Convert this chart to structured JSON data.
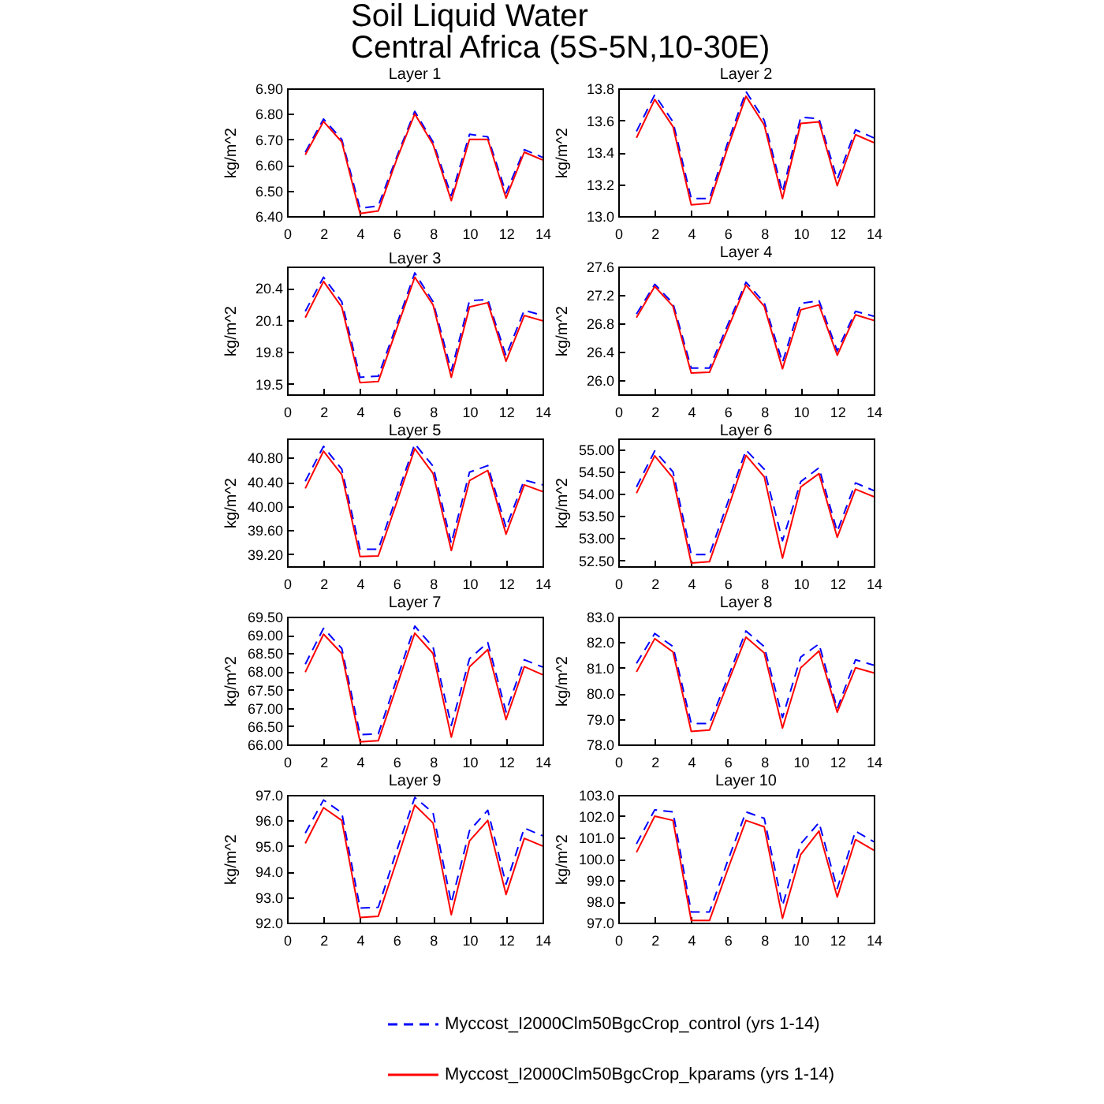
{
  "chart_data": [
    {
      "type": "other",
      "title": "Soil Liquid Water",
      "subtitle": "Central Africa (5S-5N,10-30E)"
    },
    {
      "type": "line",
      "title": "Layer 1",
      "ylabel": "kg/m^2",
      "x": [
        1,
        2,
        3,
        4,
        5,
        6,
        7,
        8,
        9,
        10,
        11,
        12,
        13,
        14
      ],
      "xlim": [
        0,
        14
      ],
      "xticks": [
        0,
        2,
        4,
        6,
        8,
        10,
        12,
        14
      ],
      "ylim": [
        6.4,
        6.9
      ],
      "yticks": [
        {
          "value": 6.4,
          "label": "6.40"
        },
        {
          "value": 6.5,
          "label": "6.50"
        },
        {
          "value": 6.6,
          "label": "6.60"
        },
        {
          "value": 6.7,
          "label": "6.70"
        },
        {
          "value": 6.8,
          "label": "6.80"
        },
        {
          "value": 6.9,
          "label": "6.90"
        }
      ],
      "series": [
        {
          "color": "#0000ff",
          "line_style": "dashed",
          "values": [
            6.65,
            6.78,
            6.7,
            6.43,
            6.44,
            6.63,
            6.81,
            6.69,
            6.48,
            6.72,
            6.71,
            6.49,
            6.66,
            6.63
          ]
        },
        {
          "color": "#ff0000",
          "line_style": "solid",
          "values": [
            6.64,
            6.77,
            6.69,
            6.41,
            6.42,
            6.62,
            6.8,
            6.68,
            6.46,
            6.7,
            6.7,
            6.47,
            6.65,
            6.62
          ]
        }
      ]
    },
    {
      "type": "line",
      "title": "Layer 2",
      "ylabel": "kg/m^2",
      "x": [
        1,
        2,
        3,
        4,
        5,
        6,
        7,
        8,
        9,
        10,
        11,
        12,
        13,
        14
      ],
      "xlim": [
        0,
        14
      ],
      "xticks": [
        0,
        2,
        4,
        6,
        8,
        10,
        12,
        14
      ],
      "ylim": [
        13.0,
        13.8
      ],
      "yticks": [
        {
          "value": 13,
          "label": "13.0"
        },
        13.2,
        13.4,
        13.6,
        13.8
      ],
      "series": [
        {
          "color": "#0000ff",
          "line_style": "dashed",
          "values": [
            13.53,
            13.76,
            13.59,
            13.11,
            13.11,
            13.46,
            13.78,
            13.6,
            13.15,
            13.62,
            13.61,
            13.23,
            13.54,
            13.49
          ]
        },
        {
          "color": "#ff0000",
          "line_style": "solid",
          "values": [
            13.49,
            13.73,
            13.56,
            13.07,
            13.08,
            13.43,
            13.75,
            13.57,
            13.11,
            13.58,
            13.59,
            13.19,
            13.51,
            13.46
          ]
        }
      ]
    },
    {
      "type": "line",
      "title": "Layer 3",
      "ylabel": "kg/m^2",
      "x": [
        1,
        2,
        3,
        4,
        5,
        6,
        7,
        8,
        9,
        10,
        11,
        12,
        13,
        14
      ],
      "xlim": [
        0,
        14
      ],
      "xticks": [
        0,
        2,
        4,
        6,
        8,
        10,
        12,
        14
      ],
      "ylim": [
        19.4,
        20.6
      ],
      "yticks": [
        19.5,
        19.8,
        20.1,
        20.4
      ],
      "series": [
        {
          "color": "#0000ff",
          "line_style": "dashed",
          "values": [
            20.18,
            20.5,
            20.27,
            19.56,
            19.57,
            20.05,
            20.54,
            20.27,
            19.62,
            20.28,
            20.29,
            19.76,
            20.19,
            20.14
          ]
        },
        {
          "color": "#ff0000",
          "line_style": "solid",
          "values": [
            20.12,
            20.46,
            20.22,
            19.51,
            19.52,
            20.01,
            20.5,
            20.24,
            19.56,
            20.22,
            20.26,
            19.71,
            20.14,
            20.09
          ]
        }
      ]
    },
    {
      "type": "line",
      "title": "Layer 4",
      "ylabel": "kg/m^2",
      "x": [
        1,
        2,
        3,
        4,
        5,
        6,
        7,
        8,
        9,
        10,
        11,
        12,
        13,
        14
      ],
      "xlim": [
        0,
        14
      ],
      "xticks": [
        0,
        2,
        4,
        6,
        8,
        10,
        12,
        14
      ],
      "ylim": [
        25.8,
        27.6
      ],
      "yticks": [
        {
          "value": 26,
          "label": "26.0"
        },
        26.4,
        26.8,
        27.2,
        27.6
      ],
      "series": [
        {
          "color": "#0000ff",
          "line_style": "dashed",
          "values": [
            26.93,
            27.35,
            27.08,
            26.17,
            26.17,
            26.78,
            27.38,
            27.09,
            26.25,
            27.08,
            27.12,
            26.41,
            26.97,
            26.9
          ]
        },
        {
          "color": "#ff0000",
          "line_style": "solid",
          "values": [
            26.88,
            27.32,
            27.04,
            26.1,
            26.11,
            26.72,
            27.34,
            27.04,
            26.16,
            26.99,
            27.06,
            26.35,
            26.92,
            26.84
          ]
        }
      ]
    },
    {
      "type": "line",
      "title": "Layer 5",
      "ylabel": "kg/m^2",
      "x": [
        1,
        2,
        3,
        4,
        5,
        6,
        7,
        8,
        9,
        10,
        11,
        12,
        13,
        14
      ],
      "xlim": [
        0,
        14
      ],
      "xticks": [
        0,
        2,
        4,
        6,
        8,
        10,
        12,
        14
      ],
      "ylim": [
        39.0,
        41.12
      ],
      "yticks": [
        {
          "value": 39.2,
          "label": "39.20"
        },
        {
          "value": 39.6,
          "label": "39.60"
        },
        {
          "value": 40,
          "label": "40.00"
        },
        {
          "value": 40.4,
          "label": "40.40"
        },
        {
          "value": 40.8,
          "label": "40.80"
        }
      ],
      "series": [
        {
          "color": "#0000ff",
          "line_style": "dashed",
          "values": [
            40.41,
            40.99,
            40.61,
            39.28,
            39.28,
            40.15,
            41.03,
            40.66,
            39.38,
            40.56,
            40.67,
            39.64,
            40.43,
            40.35
          ]
        },
        {
          "color": "#ff0000",
          "line_style": "solid",
          "values": [
            40.29,
            40.91,
            40.52,
            39.16,
            39.17,
            40.05,
            40.95,
            40.54,
            39.26,
            40.42,
            40.59,
            39.53,
            40.35,
            40.24
          ]
        }
      ]
    },
    {
      "type": "line",
      "title": "Layer 6",
      "ylabel": "kg/m^2",
      "x": [
        1,
        2,
        3,
        4,
        5,
        6,
        7,
        8,
        9,
        10,
        11,
        12,
        13,
        14
      ],
      "xlim": [
        0,
        14
      ],
      "xticks": [
        0,
        2,
        4,
        6,
        8,
        10,
        12,
        14
      ],
      "ylim": [
        52.37,
        55.24
      ],
      "yticks": [
        {
          "value": 52.5,
          "label": "52.50"
        },
        {
          "value": 53,
          "label": "53.00"
        },
        {
          "value": 53.5,
          "label": "53.50"
        },
        {
          "value": 54,
          "label": "54.00"
        },
        {
          "value": 54.5,
          "label": "54.50"
        },
        {
          "value": 55,
          "label": "55.00"
        }
      ],
      "series": [
        {
          "color": "#0000ff",
          "line_style": "dashed",
          "values": [
            54.15,
            54.96,
            54.49,
            52.63,
            52.63,
            53.8,
            54.98,
            54.55,
            52.94,
            54.27,
            54.58,
            53.15,
            54.24,
            54.07
          ]
        },
        {
          "color": "#ff0000",
          "line_style": "solid",
          "values": [
            54.01,
            54.85,
            54.35,
            52.44,
            52.47,
            53.65,
            54.86,
            54.38,
            52.55,
            54.15,
            54.45,
            53.02,
            54.1,
            53.93
          ]
        }
      ]
    },
    {
      "type": "line",
      "title": "Layer 7",
      "ylabel": "kg/m^2",
      "x": [
        1,
        2,
        3,
        4,
        5,
        6,
        7,
        8,
        9,
        10,
        11,
        12,
        13,
        14
      ],
      "xlim": [
        0,
        14
      ],
      "xticks": [
        0,
        2,
        4,
        6,
        8,
        10,
        12,
        14
      ],
      "ylim": [
        66.0,
        69.5
      ],
      "yticks": [
        {
          "value": 66,
          "label": "66.00"
        },
        {
          "value": 66.5,
          "label": "66.50"
        },
        {
          "value": 67,
          "label": "67.00"
        },
        {
          "value": 67.5,
          "label": "67.50"
        },
        {
          "value": 68,
          "label": "68.00"
        },
        {
          "value": 68.5,
          "label": "68.50"
        },
        {
          "value": 69,
          "label": "69.00"
        },
        {
          "value": 69.5,
          "label": "69.50"
        }
      ],
      "series": [
        {
          "color": "#0000ff",
          "line_style": "dashed",
          "values": [
            68.2,
            69.18,
            68.63,
            66.27,
            66.29,
            67.77,
            69.24,
            68.67,
            66.52,
            68.35,
            68.79,
            66.89,
            68.32,
            68.12
          ]
        },
        {
          "color": "#ff0000",
          "line_style": "solid",
          "values": [
            67.98,
            69.02,
            68.49,
            66.07,
            66.1,
            67.58,
            69.05,
            68.49,
            66.2,
            68.13,
            68.6,
            66.68,
            68.13,
            67.91
          ]
        }
      ]
    },
    {
      "type": "line",
      "title": "Layer 8",
      "ylabel": "kg/m^2",
      "x": [
        1,
        2,
        3,
        4,
        5,
        6,
        7,
        8,
        9,
        10,
        11,
        12,
        13,
        14
      ],
      "xlim": [
        0,
        14
      ],
      "xticks": [
        0,
        2,
        4,
        6,
        8,
        10,
        12,
        14
      ],
      "ylim": [
        78.0,
        83.0
      ],
      "yticks": [
        {
          "value": 78,
          "label": "78.0"
        },
        {
          "value": 79,
          "label": "79.0"
        },
        {
          "value": 80,
          "label": "80.0"
        },
        {
          "value": 81,
          "label": "81.0"
        },
        {
          "value": 82,
          "label": "82.0"
        },
        {
          "value": 83,
          "label": "83.0"
        }
      ],
      "series": [
        {
          "color": "#0000ff",
          "line_style": "dashed",
          "values": [
            81.17,
            82.34,
            81.83,
            78.82,
            78.82,
            80.6,
            82.44,
            81.83,
            79.05,
            81.42,
            81.93,
            79.4,
            81.31,
            81.1
          ]
        },
        {
          "color": "#ff0000",
          "line_style": "solid",
          "values": [
            80.84,
            82.14,
            81.62,
            78.51,
            78.56,
            80.4,
            82.2,
            81.58,
            78.64,
            81.0,
            81.66,
            79.26,
            81.0,
            80.8
          ]
        }
      ]
    },
    {
      "type": "line",
      "title": "Layer 9",
      "ylabel": "kg/m^2",
      "x": [
        1,
        2,
        3,
        4,
        5,
        6,
        7,
        8,
        9,
        10,
        11,
        12,
        13,
        14
      ],
      "xlim": [
        0,
        14
      ],
      "xticks": [
        0,
        2,
        4,
        6,
        8,
        10,
        12,
        14
      ],
      "ylim": [
        92.0,
        97.0
      ],
      "yticks": [
        {
          "value": 92,
          "label": "92.0"
        },
        {
          "value": 93,
          "label": "93.0"
        },
        {
          "value": 94,
          "label": "94.0"
        },
        {
          "value": 95,
          "label": "95.0"
        },
        {
          "value": 96,
          "label": "96.0"
        },
        {
          "value": 97,
          "label": "97.0"
        }
      ],
      "series": [
        {
          "color": "#0000ff",
          "line_style": "dashed",
          "values": [
            95.5,
            96.8,
            96.3,
            92.57,
            92.6,
            94.8,
            96.9,
            96.3,
            92.77,
            95.6,
            96.4,
            93.5,
            95.7,
            95.4
          ]
        },
        {
          "color": "#ff0000",
          "line_style": "solid",
          "values": [
            95.1,
            96.5,
            96.0,
            92.2,
            92.25,
            94.4,
            96.6,
            95.9,
            92.31,
            95.2,
            96.0,
            93.1,
            95.3,
            95.0
          ]
        }
      ]
    },
    {
      "type": "line",
      "title": "Layer 10",
      "ylabel": "kg/m^2",
      "x": [
        1,
        2,
        3,
        4,
        5,
        6,
        7,
        8,
        9,
        10,
        11,
        12,
        13,
        14
      ],
      "xlim": [
        0,
        14
      ],
      "xticks": [
        0,
        2,
        4,
        6,
        8,
        10,
        12,
        14
      ],
      "ylim": [
        97.0,
        103.0
      ],
      "yticks": [
        {
          "value": 97,
          "label": "97.0"
        },
        {
          "value": 98,
          "label": "98.0"
        },
        {
          "value": 99,
          "label": "99.0"
        },
        {
          "value": 100,
          "label": "100.0"
        },
        {
          "value": 101,
          "label": "101.0"
        },
        {
          "value": 102,
          "label": "102.0"
        },
        {
          "value": 103,
          "label": "103.0"
        }
      ],
      "legend": "bottom",
      "series": [
        {
          "name": "Myccost_I2000Clm50BgcCrop_control (yrs 1-14)",
          "color": "#0000ff",
          "line_style": "dashed",
          "values": [
            100.7,
            102.3,
            102.2,
            97.5,
            97.5,
            99.9,
            102.2,
            101.9,
            97.8,
            100.7,
            101.7,
            98.6,
            101.3,
            100.8
          ]
        },
        {
          "name": "Myccost_I2000Clm50BgcCrop_kparams (yrs 1-14)",
          "color": "#ff0000",
          "line_style": "solid",
          "values": [
            100.3,
            102.0,
            101.8,
            97.1,
            97.1,
            99.5,
            101.8,
            101.5,
            97.2,
            100.2,
            101.3,
            98.2,
            100.9,
            100.4
          ]
        }
      ]
    }
  ]
}
